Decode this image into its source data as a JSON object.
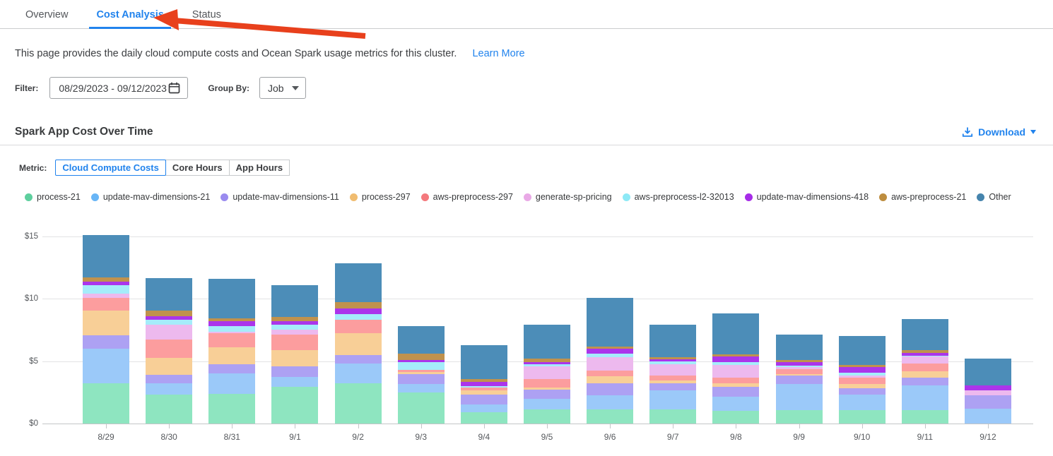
{
  "colors": {
    "accent": "#2183ed",
    "arrow": "#e8401c"
  },
  "tabs": {
    "overview": "Overview",
    "cost_analysis": "Cost Analysis",
    "status": "Status",
    "active": "Cost Analysis"
  },
  "description": {
    "text": "This page provides the daily cloud compute costs and Ocean Spark usage metrics for this cluster.",
    "link": "Learn More"
  },
  "filter": {
    "label": "Filter:",
    "date_range": "08/29/2023  -  09/12/2023",
    "group_by_label": "Group By:",
    "group_by_value": "Job"
  },
  "section": {
    "title": "Spark App Cost Over Time",
    "download_label": "Download"
  },
  "metric": {
    "label": "Metric:",
    "options": [
      "Cloud Compute Costs",
      "Core Hours",
      "App Hours"
    ],
    "selected": "Cloud Compute Costs"
  },
  "chart_data": {
    "type": "bar",
    "stacked": true,
    "title": "Spark App Cost Over Time",
    "xlabel": "",
    "ylabel": "",
    "ylim": [
      0,
      15
    ],
    "y_ticks": [
      0,
      5,
      10,
      15
    ],
    "y_tick_labels": [
      "$0",
      "$5",
      "$10",
      "$15"
    ],
    "grid": true,
    "legend_position": "top",
    "value_unit": "USD",
    "categories": [
      "8/29",
      "8/30",
      "8/31",
      "9/1",
      "9/2",
      "9/3",
      "9/4",
      "9/5",
      "9/6",
      "9/7",
      "9/8",
      "9/9",
      "9/10",
      "9/11",
      "9/12"
    ],
    "series": [
      {
        "name": "process-21",
        "legend_color": "#5ecf9e",
        "bar_color": "#8ee5c0",
        "values": [
          3.2,
          2.33,
          2.37,
          2.93,
          3.25,
          2.5,
          0.9,
          1.15,
          1.15,
          1.1,
          1.0,
          1.05,
          1.05,
          1.05,
          0
        ]
      },
      {
        "name": "update-mav-dimensions-21",
        "legend_color": "#68b5f6",
        "bar_color": "#9bc9f9",
        "values": [
          2.8,
          0.9,
          1.63,
          0.82,
          1.55,
          0.65,
          0.6,
          0.85,
          1.13,
          1.55,
          1.15,
          2.1,
          1.25,
          2.0,
          1.2
        ]
      },
      {
        "name": "update-mav-dimensions-11",
        "legend_color": "#9a8bef",
        "bar_color": "#ada1f3",
        "values": [
          1.1,
          0.65,
          0.73,
          0.85,
          0.7,
          0.8,
          0.8,
          0.7,
          0.95,
          0.55,
          0.8,
          0.7,
          0.55,
          0.65,
          1.05
        ]
      },
      {
        "name": "process-297",
        "legend_color": "#f0bc70",
        "bar_color": "#f8cf97",
        "values": [
          1.95,
          1.4,
          1.4,
          1.3,
          1.75,
          0.2,
          0.35,
          0.2,
          0.55,
          0.25,
          0.25,
          0.1,
          0.3,
          0.5,
          0
        ]
      },
      {
        "name": "aws-preprocess-297",
        "legend_color": "#f4797d",
        "bar_color": "#fc9d9e",
        "values": [
          1.05,
          1.45,
          1.1,
          1.25,
          1.05,
          0.15,
          0.25,
          0.65,
          0.45,
          0.4,
          0.45,
          0.4,
          0.55,
          0.6,
          0
        ]
      },
      {
        "name": "generate-sp-pricing",
        "legend_color": "#e9a9e6",
        "bar_color": "#edb9ee",
        "values": [
          0.3,
          1.2,
          0.15,
          0.4,
          0,
          0,
          0,
          1.05,
          1.1,
          0.9,
          1.05,
          0.15,
          0.15,
          0.55,
          0.4
        ]
      },
      {
        "name": "aws-preprocess-l2-32013",
        "legend_color": "#8de9f6",
        "bar_color": "#a5ecfa",
        "values": [
          0.7,
          0.4,
          0.45,
          0.4,
          0.45,
          0.65,
          0.1,
          0.15,
          0.25,
          0.25,
          0.25,
          0.15,
          0.2,
          0.1,
          0
        ]
      },
      {
        "name": "update-mav-dimensions-418",
        "legend_color": "#a62ce8",
        "bar_color": "#ab35eb",
        "values": [
          0.25,
          0.25,
          0.35,
          0.25,
          0.45,
          0.15,
          0.35,
          0.2,
          0.4,
          0.15,
          0.4,
          0.25,
          0.45,
          0.2,
          0.4
        ]
      },
      {
        "name": "aws-preprocess-21",
        "legend_color": "#bd8d3f",
        "bar_color": "#c0924d",
        "values": [
          0.35,
          0.45,
          0.25,
          0.35,
          0.55,
          0.5,
          0.2,
          0.25,
          0.2,
          0.15,
          0.2,
          0.2,
          0.2,
          0.25,
          0
        ]
      },
      {
        "name": "Other",
        "legend_color": "#4584ad",
        "bar_color": "#4c8db8",
        "values": [
          3.4,
          2.65,
          3.15,
          2.55,
          3.1,
          2.2,
          2.75,
          2.7,
          3.9,
          2.6,
          3.3,
          2.05,
          2.3,
          2.45,
          2.15
        ]
      }
    ]
  }
}
